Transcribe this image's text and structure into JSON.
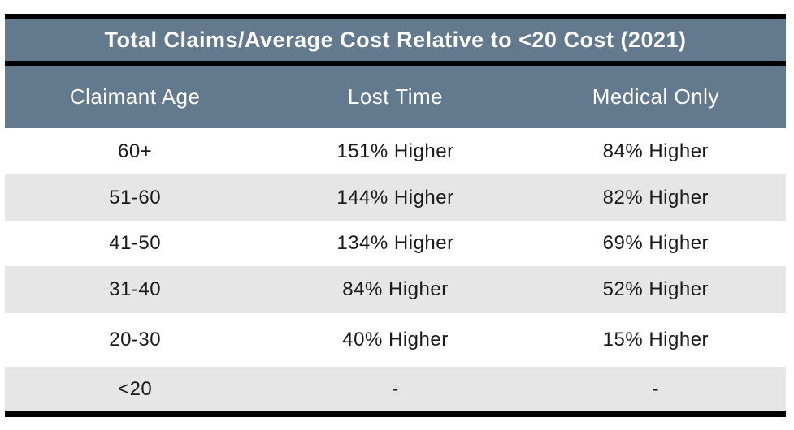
{
  "chart_data": {
    "type": "table",
    "title": "Total Claims/Average Cost Relative to <20 Cost (2021)",
    "columns": [
      "Claimant Age",
      "Lost Time",
      "Medical Only"
    ],
    "rows": [
      [
        "60+",
        "151% Higher",
        "84% Higher"
      ],
      [
        "51-60",
        "144% Higher",
        "82% Higher"
      ],
      [
        "41-50",
        "134% Higher",
        "69% Higher"
      ],
      [
        "31-40",
        "84% Higher",
        "52% Higher"
      ],
      [
        "20-30",
        "40% Higher",
        "15% Higher"
      ],
      [
        "<20",
        "-",
        "-"
      ]
    ],
    "layout_hints": {
      "stripe_pattern": "alternating white and gray starting with white",
      "alignment": "center"
    }
  },
  "colors": {
    "title_header_bg": "#62798E",
    "stripe_bg": "#E6E6E6",
    "row_bg": "#FFFFFF",
    "border": "#000000",
    "header_text": "#FFFFFF",
    "cell_text": "#1A1A1A"
  }
}
